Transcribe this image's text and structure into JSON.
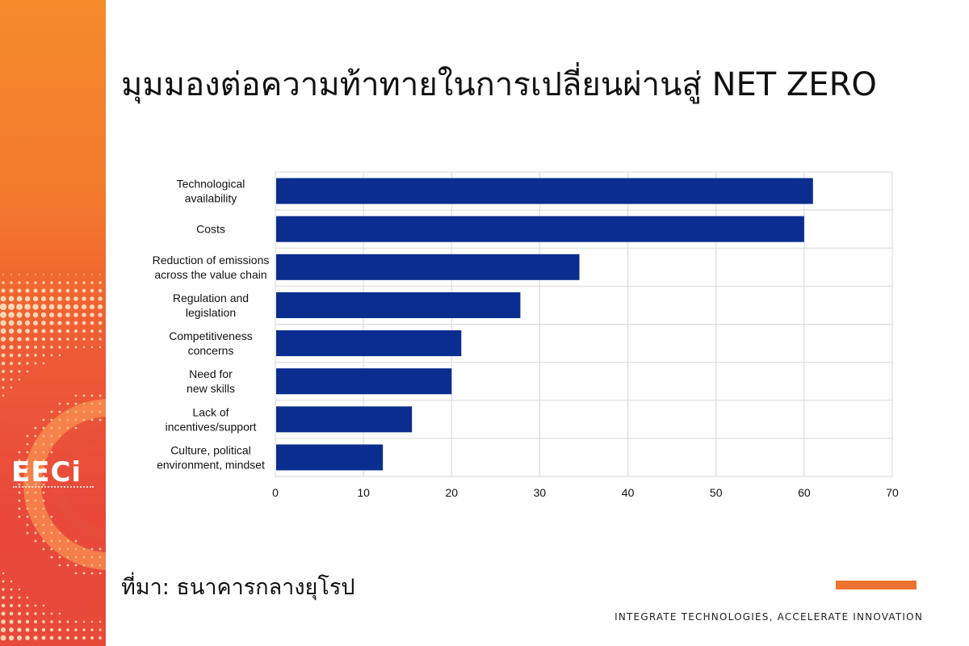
{
  "page": {
    "title": "มุมมองต่อความท้าทายในการเปลี่ยนผ่านสู่ NET ZERO",
    "source": "ที่มา: ธนาคารกลางยุโรป",
    "tagline": "INTEGRATE TECHNOLOGIES, ACCELERATE INNOVATION",
    "logo_text": "EECi"
  },
  "colors": {
    "bar": "#0a2d8f",
    "accent": "#ec7430",
    "side_band_top": "#f58a2b",
    "side_band_bottom": "#e84a3a",
    "grid": "#d9d9d9"
  },
  "chart_data": {
    "type": "bar",
    "orientation": "horizontal",
    "title": "",
    "xlabel": "",
    "ylabel": "",
    "xlim": [
      0,
      70
    ],
    "x_ticks": [
      0,
      10,
      20,
      30,
      40,
      50,
      60,
      70
    ],
    "grid": true,
    "categories": [
      [
        "Technological",
        "availability"
      ],
      [
        "Costs"
      ],
      [
        "Reduction of emissions",
        "across the value chain"
      ],
      [
        "Regulation and",
        "legislation"
      ],
      [
        "Competitiveness",
        "concerns"
      ],
      [
        "Need for",
        "new skills"
      ],
      [
        "Lack of",
        "incentives/support"
      ],
      [
        "Culture, political",
        "environment, mindset"
      ]
    ],
    "values": [
      61,
      60,
      34.5,
      27.8,
      21.1,
      20,
      15.5,
      12.2
    ]
  }
}
